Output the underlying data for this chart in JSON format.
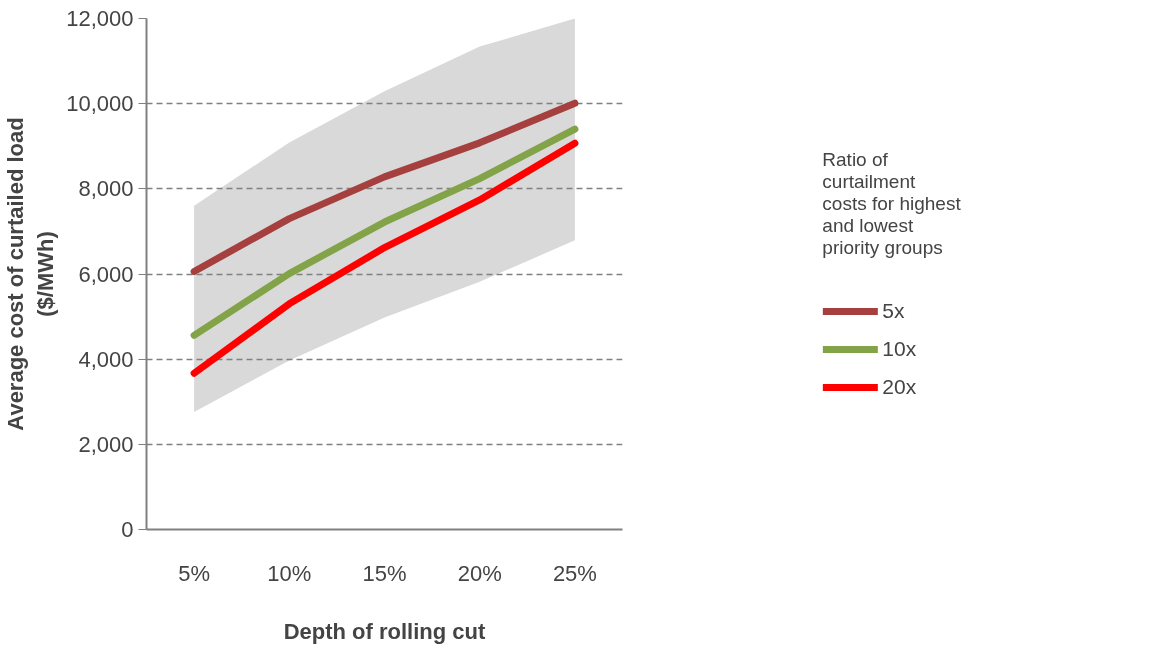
{
  "chart_data": {
    "type": "line",
    "xlabel": "Depth of rolling cut",
    "ylabel": "Average cost of curtailed load\n($/MWh)",
    "legend_title": "Ratio of\ncurtailment\ncosts for highest\nand lowest\npriority groups",
    "categories": [
      "5%",
      "10%",
      "15%",
      "20%",
      "25%"
    ],
    "series": [
      {
        "name": "5x",
        "color": "#a5403e",
        "values": [
          6060,
          7300,
          8280,
          9080,
          10010
        ]
      },
      {
        "name": "10x",
        "color": "#82a348",
        "values": [
          4560,
          6010,
          7220,
          8240,
          9400
        ],
        "lower": [
          2760,
          3970,
          4980,
          5820,
          6790
        ],
        "upper": [
          7600,
          9090,
          10290,
          11340,
          12000
        ]
      },
      {
        "name": "20x",
        "color": "#ff0000",
        "values": [
          3670,
          5300,
          6620,
          7740,
          9070
        ]
      }
    ],
    "ylim": [
      0,
      12000
    ],
    "yticks": [
      {
        "value": 0,
        "label": "0"
      },
      {
        "value": 2000,
        "label": "2,000"
      },
      {
        "value": 4000,
        "label": "4,000"
      },
      {
        "value": 6000,
        "label": "6,000"
      },
      {
        "value": 8000,
        "label": "8,000"
      },
      {
        "value": 10000,
        "label": "10,000"
      },
      {
        "value": 12000,
        "label": "12,000"
      }
    ],
    "grid": "y",
    "legend": "right",
    "marker": "none",
    "line_style": "solid"
  }
}
